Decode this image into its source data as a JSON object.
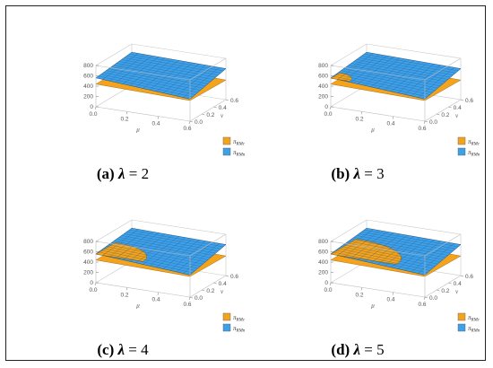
{
  "chart_data": [
    {
      "type": "surface3d",
      "panel_label": "(a)",
      "caption_lambda": "λ",
      "caption_value": "= 2",
      "xlabel": "μ",
      "ylabel": "v",
      "x_ticks": [
        "0.0",
        "0.2",
        "0.4",
        "0.6"
      ],
      "y_ticks": [
        "0.0",
        "0.2",
        "0.4",
        "0.6"
      ],
      "z_ticks": [
        "0",
        "200",
        "400",
        "600",
        "800"
      ],
      "xlim": [
        0,
        0.6
      ],
      "ylim": [
        0,
        0.6
      ],
      "zlim": [
        0,
        800
      ],
      "series": [
        {
          "name": "π_RMc",
          "color": "#f5a31a",
          "orange_region_mu_max": 0.0,
          "orange_region_v_max": 0.0
        },
        {
          "name": "π_RMn",
          "color": "#3ea0e8"
        }
      ],
      "legend": [
        "π",
        "π"
      ],
      "legend_sub": [
        "RMc",
        "RMn"
      ]
    },
    {
      "type": "surface3d",
      "panel_label": "(b)",
      "caption_lambda": "λ",
      "caption_value": "= 3",
      "xlabel": "μ",
      "ylabel": "v",
      "x_ticks": [
        "0.0",
        "0.2",
        "0.4",
        "0.6"
      ],
      "y_ticks": [
        "0.0",
        "0.2",
        "0.4",
        "0.6"
      ],
      "z_ticks": [
        "0",
        "200",
        "400",
        "600",
        "800"
      ],
      "xlim": [
        0,
        0.6
      ],
      "ylim": [
        0,
        0.6
      ],
      "zlim": [
        0,
        800
      ],
      "series": [
        {
          "name": "π_RMc",
          "color": "#f5a31a",
          "orange_region_mu_max": 0.12,
          "orange_region_v_max": 0.15
        },
        {
          "name": "π_RMn",
          "color": "#3ea0e8"
        }
      ],
      "legend": [
        "π",
        "π"
      ],
      "legend_sub": [
        "RMc",
        "RMn"
      ]
    },
    {
      "type": "surface3d",
      "panel_label": "(c)",
      "caption_lambda": "λ",
      "caption_value": "= 4",
      "xlabel": "μ",
      "ylabel": "v",
      "x_ticks": [
        "0.0",
        "0.2",
        "0.4",
        "0.6"
      ],
      "y_ticks": [
        "0.0",
        "0.2",
        "0.4",
        "0.6"
      ],
      "z_ticks": [
        "0",
        "200",
        "400",
        "600",
        "800"
      ],
      "xlim": [
        0,
        0.6
      ],
      "ylim": [
        0,
        0.6
      ],
      "zlim": [
        0,
        800
      ],
      "series": [
        {
          "name": "π_RMc",
          "color": "#f5a31a",
          "orange_region_mu_max": 0.3,
          "orange_region_v_max": 0.32
        },
        {
          "name": "π_RMn",
          "color": "#3ea0e8"
        }
      ],
      "legend": [
        "π",
        "π"
      ],
      "legend_sub": [
        "RMc",
        "RMn"
      ]
    },
    {
      "type": "surface3d",
      "panel_label": "(d)",
      "caption_lambda": "λ",
      "caption_value": "= 5",
      "xlabel": "μ",
      "ylabel": "v",
      "x_ticks": [
        "0.0",
        "0.2",
        "0.4",
        "0.6"
      ],
      "y_ticks": [
        "0.0",
        "0.2",
        "0.4",
        "0.6"
      ],
      "z_ticks": [
        "0",
        "200",
        "400",
        "600",
        "800"
      ],
      "xlim": [
        0,
        0.6
      ],
      "ylim": [
        0,
        0.6
      ],
      "zlim": [
        0,
        800
      ],
      "series": [
        {
          "name": "π_RMc",
          "color": "#f5a31a",
          "orange_region_mu_max": 0.42,
          "orange_region_v_max": 0.42
        },
        {
          "name": "π_RMn",
          "color": "#3ea0e8"
        }
      ],
      "legend": [
        "π",
        "π"
      ],
      "legend_sub": [
        "RMc",
        "RMn"
      ]
    }
  ]
}
